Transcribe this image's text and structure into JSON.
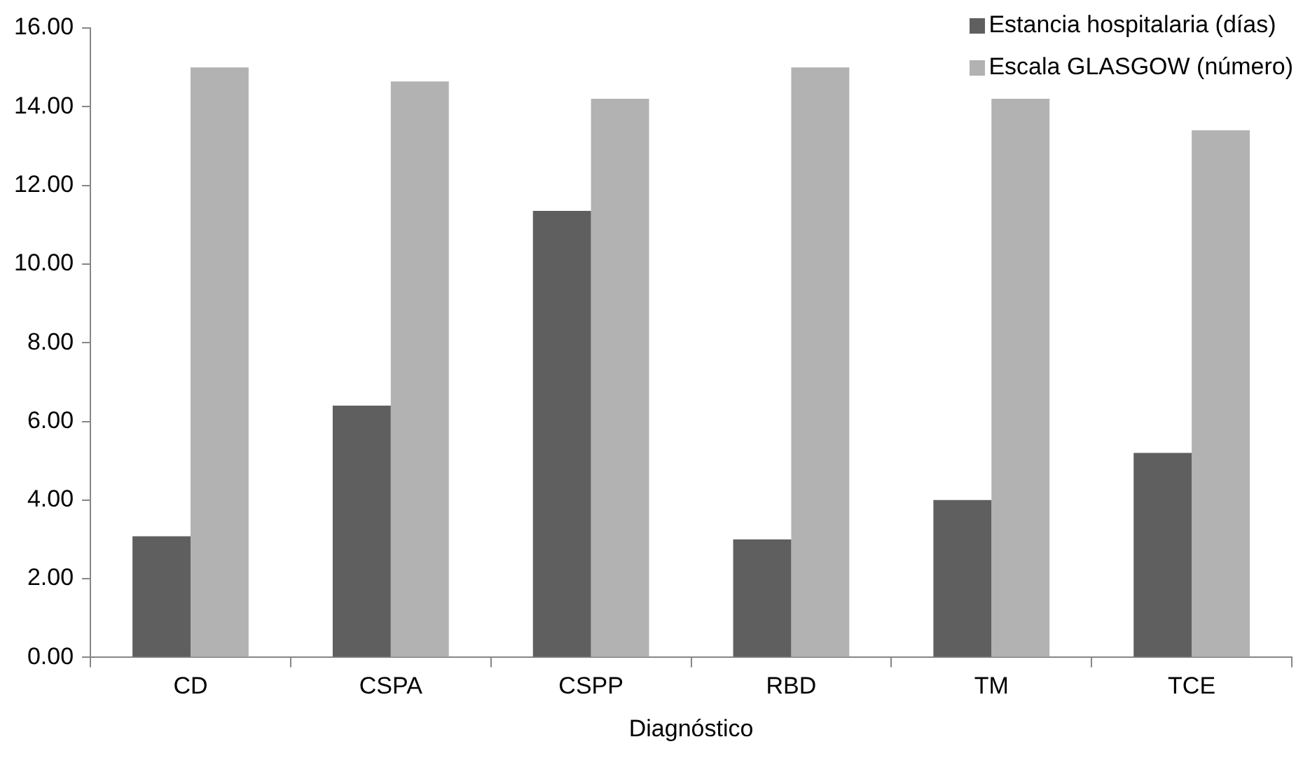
{
  "chart_data": {
    "type": "bar",
    "xlabel": "Diagnóstico",
    "categories": [
      "CD",
      "CSPA",
      "CSPP",
      "RBD",
      "TM",
      "TCE"
    ],
    "series": [
      {
        "name": "Estancia hospitalaria (días)",
        "color": "#5f5f5f",
        "values": [
          3.08,
          6.4,
          11.35,
          3.0,
          4.0,
          5.2
        ]
      },
      {
        "name": "Escala GLASGOW (número)",
        "color": "#b2b2b2",
        "values": [
          15.0,
          14.64,
          14.2,
          15.0,
          14.2,
          13.4
        ]
      }
    ],
    "ylim": [
      0,
      16
    ],
    "yticks": [
      {
        "value": 0,
        "label": "0.00"
      },
      {
        "value": 2,
        "label": "2.00"
      },
      {
        "value": 4,
        "label": "4.00"
      },
      {
        "value": 6,
        "label": "6.00"
      },
      {
        "value": 8,
        "label": "8.00"
      },
      {
        "value": 10,
        "label": "10.00"
      },
      {
        "value": 12,
        "label": "12.00"
      },
      {
        "value": 14,
        "label": "14.00"
      },
      {
        "value": 16,
        "label": "16.00"
      }
    ],
    "grid": false,
    "legend": "top right"
  }
}
